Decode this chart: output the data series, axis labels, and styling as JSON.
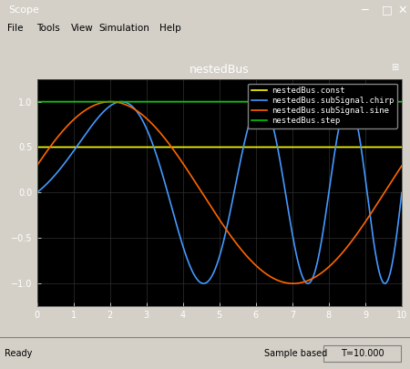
{
  "title": "nestedBus",
  "xlim": [
    0,
    10
  ],
  "ylim": [
    -1.25,
    1.25
  ],
  "xticks": [
    0,
    1,
    2,
    3,
    4,
    5,
    6,
    7,
    8,
    9,
    10
  ],
  "yticks": [
    -1,
    -0.5,
    0,
    0.5,
    1
  ],
  "bg_color": "#000000",
  "fig_bg_color": "#d4d0c8",
  "grid_color": "#2a2a2a",
  "const_value": 0.5,
  "const_color": "#ffff00",
  "chirp_color": "#4499ff",
  "sine_color": "#ff6600",
  "step_color": "#00cc00",
  "const_label": "nestedBus.const",
  "chirp_label": "nestedBus.subSignal.chirp",
  "sine_label": "nestedBus.subSignal.sine",
  "step_label": "nestedBus.step",
  "status_left": "Ready",
  "status_right": "Sample based  T=10.000",
  "window_title": "Scope",
  "titlebar_color": "#0a246a",
  "titlebar_text_color": "#ffffff",
  "menu_color": "#d4d0c8",
  "tick_color": "#ffffff",
  "tick_fontsize": 7,
  "legend_fontsize": 7,
  "title_fontsize": 9
}
